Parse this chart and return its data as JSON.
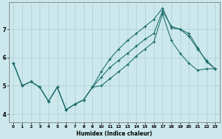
{
  "xlabel": "Humidex (Indice chaleur)",
  "background_color": "#cce8ec",
  "grid_color": "#aacccc",
  "line_color": "#1a6b6b",
  "xlim": [
    -0.5,
    23.5
  ],
  "ylim": [
    3.7,
    7.95
  ],
  "yticks": [
    4,
    5,
    6,
    7
  ],
  "xticks": [
    0,
    1,
    2,
    3,
    4,
    5,
    6,
    7,
    8,
    9,
    10,
    11,
    12,
    13,
    14,
    15,
    16,
    17,
    18,
    19,
    20,
    21,
    22,
    23
  ],
  "series1_x": [
    0,
    1,
    2,
    3,
    4,
    5,
    6,
    7,
    8,
    9,
    10,
    11,
    12,
    13,
    14,
    15,
    16,
    17,
    18,
    19,
    20,
    21,
    22,
    23
  ],
  "series1_y": [
    5.8,
    5.0,
    5.15,
    4.95,
    4.45,
    4.95,
    4.15,
    4.35,
    4.5,
    4.95,
    5.3,
    5.65,
    5.9,
    6.15,
    6.4,
    6.65,
    6.85,
    7.65,
    7.1,
    7.0,
    6.75,
    6.3,
    5.9,
    5.6
  ],
  "series2_x": [
    0,
    1,
    2,
    3,
    4,
    5,
    6,
    7,
    8,
    9,
    10,
    11,
    12,
    13,
    14,
    15,
    16,
    17,
    18,
    19,
    20,
    21,
    22,
    23
  ],
  "series2_y": [
    5.8,
    5.0,
    5.15,
    4.95,
    4.45,
    4.95,
    4.15,
    4.35,
    4.5,
    4.95,
    5.5,
    5.95,
    6.3,
    6.6,
    6.85,
    7.1,
    7.35,
    7.75,
    7.05,
    7.0,
    6.85,
    6.35,
    5.85,
    5.6
  ],
  "series3_x": [
    0,
    1,
    2,
    3,
    4,
    5,
    6,
    7,
    8,
    9,
    10,
    11,
    12,
    13,
    14,
    15,
    16,
    17,
    18,
    19,
    20,
    21,
    22,
    23
  ],
  "series3_y": [
    5.8,
    5.0,
    5.15,
    4.95,
    4.45,
    4.95,
    4.15,
    4.35,
    4.5,
    4.95,
    5.0,
    5.25,
    5.5,
    5.75,
    6.05,
    6.3,
    6.55,
    7.55,
    6.6,
    6.15,
    5.8,
    5.55,
    5.6,
    5.6
  ]
}
